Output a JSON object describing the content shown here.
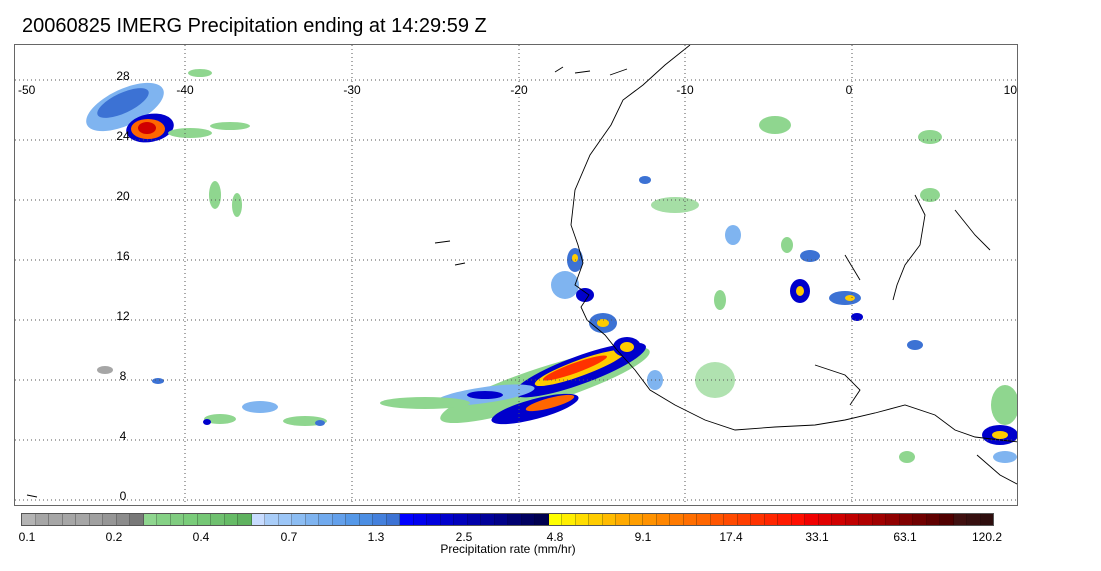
{
  "title": "20060825 IMERG Precipitation ending at 14:29:59 Z",
  "map": {
    "lon_range": [
      -50,
      10
    ],
    "lat_range": [
      -1,
      29
    ],
    "lon_ticks": [
      "-50",
      "-40",
      "-30",
      "-20",
      "-10",
      "0",
      "10"
    ],
    "lat_ticks": [
      "0",
      "4",
      "8",
      "12",
      "16",
      "20",
      "24",
      "28"
    ],
    "gridlines": "dotted",
    "coastline_color": "#000000"
  },
  "colorbar": {
    "unit_label": "Precipitation rate (mm/hr)",
    "tick_labels": [
      "0.1",
      "0.2",
      "0.4",
      "0.7",
      "1.3",
      "2.5",
      "4.8",
      "9.1",
      "17.4",
      "33.1",
      "63.1",
      "120.2"
    ],
    "colors": [
      "#b4b4b4",
      "#a6a6a6",
      "#a6a6a6",
      "#a6a6a6",
      "#a6a6a6",
      "#a0a0a0",
      "#969696",
      "#8c8c8c",
      "#787878",
      "#8fd68f",
      "#85d185",
      "#80cc80",
      "#7acc7a",
      "#75c775",
      "#6fc06f",
      "#66bb66",
      "#5fb25f",
      "#c8dcff",
      "#a9cdf8",
      "#9cc6f7",
      "#8cbdf3",
      "#7fb4f0",
      "#71aaee",
      "#63a0eb",
      "#5598e8",
      "#4c8ee3",
      "#4480dc",
      "#3c72d4",
      "#0000ff",
      "#0000ee",
      "#0000dd",
      "#0000cc",
      "#0000bb",
      "#0000aa",
      "#000099",
      "#000088",
      "#000070",
      "#000060",
      "#000050",
      "#ffff00",
      "#ffee00",
      "#ffdd00",
      "#ffcc00",
      "#ffbb00",
      "#ffaa00",
      "#ff9e00",
      "#ff9200",
      "#ff8600",
      "#ff7a00",
      "#ff6e00",
      "#ff6600",
      "#ff5500",
      "#ff4a00",
      "#ff3e00",
      "#ff3200",
      "#ff2600",
      "#ff1a00",
      "#ff0e00",
      "#f00000",
      "#e00000",
      "#d00000",
      "#c00000",
      "#b00000",
      "#a00000",
      "#900000",
      "#800000",
      "#700000",
      "#600000",
      "#500000",
      "#401010",
      "#371010",
      "#2e0e0e"
    ]
  }
}
